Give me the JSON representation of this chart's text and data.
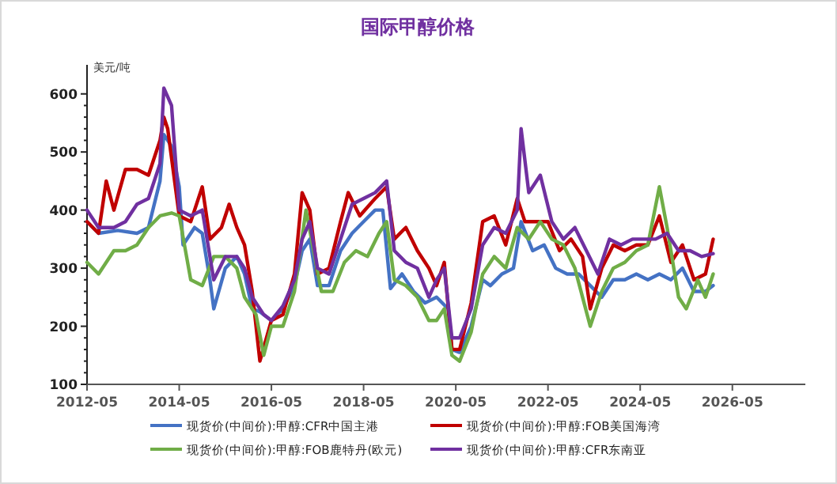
{
  "chart_data": {
    "type": "line",
    "title": "国际甲醇价格",
    "ylabel": "美元/吨",
    "xlim": [
      "2012-05",
      "2027-12"
    ],
    "xticks": [
      "2012-05",
      "2014-05",
      "2016-05",
      "2018-05",
      "2020-05",
      "2022-05",
      "2024-05",
      "2026-05"
    ],
    "ylim": [
      100,
      650
    ],
    "yticks": [
      100,
      200,
      300,
      400,
      500,
      600
    ],
    "grid": false,
    "legend": "bottom",
    "marker": "none",
    "line_style": "solid",
    "series": [
      {
        "name": "现货价(中间价):甲醇:CFR中国主港",
        "color": "#4472c4",
        "x": [
          "2012-05",
          "2012-08",
          "2013-01",
          "2013-06",
          "2013-09",
          "2013-12",
          "2014-01",
          "2014-03",
          "2014-05",
          "2014-06",
          "2014-09",
          "2014-11",
          "2015-01",
          "2015-02",
          "2015-05",
          "2015-08",
          "2015-10",
          "2015-12",
          "2016-02",
          "2016-05",
          "2016-08",
          "2016-11",
          "2017-01",
          "2017-03",
          "2017-05",
          "2017-08",
          "2017-11",
          "2018-02",
          "2018-05",
          "2018-08",
          "2018-10",
          "2018-12",
          "2019-03",
          "2019-06",
          "2019-09",
          "2019-12",
          "2020-03",
          "2020-04",
          "2020-06",
          "2020-09",
          "2020-12",
          "2021-02",
          "2021-05",
          "2021-08",
          "2021-10",
          "2022-01",
          "2022-04",
          "2022-07",
          "2022-10",
          "2023-01",
          "2023-04",
          "2023-07",
          "2023-10",
          "2024-01",
          "2024-04",
          "2024-07",
          "2024-10",
          "2025-01",
          "2025-04",
          "2025-07",
          "2025-10",
          "2025-12"
        ],
        "values": [
          380,
          360,
          365,
          360,
          370,
          450,
          530,
          510,
          440,
          340,
          370,
          360,
          280,
          230,
          300,
          320,
          290,
          230,
          225,
          210,
          230,
          270,
          330,
          350,
          270,
          270,
          330,
          360,
          380,
          400,
          400,
          265,
          290,
          260,
          240,
          250,
          230,
          160,
          155,
          200,
          280,
          270,
          290,
          300,
          380,
          330,
          340,
          300,
          290,
          290,
          270,
          250,
          280,
          280,
          290,
          280,
          290,
          280,
          300,
          260,
          260,
          270
        ]
      },
      {
        "name": "现货价(中间价):甲醇:FOB美国海湾",
        "color": "#c00000",
        "x": [
          "2012-05",
          "2012-08",
          "2012-10",
          "2012-12",
          "2013-03",
          "2013-06",
          "2013-09",
          "2013-12",
          "2014-01",
          "2014-02",
          "2014-05",
          "2014-08",
          "2014-11",
          "2015-01",
          "2015-04",
          "2015-06",
          "2015-08",
          "2015-10",
          "2015-12",
          "2016-02",
          "2016-05",
          "2016-08",
          "2016-11",
          "2017-01",
          "2017-03",
          "2017-05",
          "2017-08",
          "2017-11",
          "2018-01",
          "2018-04",
          "2018-08",
          "2018-11",
          "2019-01",
          "2019-04",
          "2019-07",
          "2019-10",
          "2019-12",
          "2020-02",
          "2020-04",
          "2020-06",
          "2020-09",
          "2020-12",
          "2021-03",
          "2021-06",
          "2021-09",
          "2021-11",
          "2022-02",
          "2022-05",
          "2022-08",
          "2022-11",
          "2023-02",
          "2023-04",
          "2023-07",
          "2023-10",
          "2024-01",
          "2024-04",
          "2024-07",
          "2024-10",
          "2025-01",
          "2025-04",
          "2025-07",
          "2025-10",
          "2025-12"
        ],
        "values": [
          380,
          360,
          450,
          400,
          470,
          470,
          460,
          520,
          560,
          540,
          390,
          380,
          440,
          350,
          370,
          410,
          370,
          340,
          260,
          140,
          210,
          220,
          290,
          430,
          400,
          290,
          300,
          380,
          430,
          390,
          420,
          440,
          350,
          370,
          330,
          300,
          270,
          310,
          160,
          160,
          240,
          380,
          390,
          340,
          420,
          380,
          380,
          380,
          330,
          350,
          320,
          230,
          300,
          340,
          330,
          340,
          340,
          390,
          310,
          340,
          280,
          290,
          350
        ]
      },
      {
        "name": "现货价(中间价):甲醇:FOB鹿特丹(欧元)",
        "color": "#70ad47",
        "x": [
          "2012-05",
          "2012-08",
          "2012-12",
          "2013-03",
          "2013-06",
          "2013-09",
          "2013-12",
          "2014-03",
          "2014-05",
          "2014-08",
          "2014-11",
          "2015-02",
          "2015-05",
          "2015-08",
          "2015-10",
          "2016-01",
          "2016-03",
          "2016-05",
          "2016-08",
          "2016-11",
          "2017-02",
          "2017-04",
          "2017-06",
          "2017-09",
          "2017-12",
          "2018-03",
          "2018-06",
          "2018-09",
          "2018-11",
          "2019-01",
          "2019-04",
          "2019-07",
          "2019-10",
          "2019-12",
          "2020-02",
          "2020-04",
          "2020-06",
          "2020-09",
          "2020-12",
          "2021-03",
          "2021-06",
          "2021-09",
          "2021-12",
          "2022-03",
          "2022-06",
          "2022-09",
          "2022-12",
          "2023-02",
          "2023-04",
          "2023-07",
          "2023-10",
          "2024-01",
          "2024-04",
          "2024-07",
          "2024-10",
          "2024-12",
          "2025-03",
          "2025-05",
          "2025-08",
          "2025-10",
          "2025-12"
        ],
        "values": [
          310,
          290,
          330,
          330,
          340,
          370,
          390,
          395,
          390,
          280,
          270,
          320,
          320,
          300,
          250,
          220,
          150,
          200,
          200,
          260,
          400,
          330,
          260,
          260,
          310,
          330,
          320,
          360,
          380,
          280,
          270,
          250,
          210,
          210,
          230,
          150,
          140,
          190,
          290,
          320,
          300,
          370,
          350,
          380,
          350,
          340,
          300,
          250,
          200,
          260,
          300,
          310,
          330,
          340,
          440,
          370,
          250,
          230,
          280,
          250,
          290
        ]
      },
      {
        "name": "现货价(中间价):甲醇:CFR东南亚",
        "color": "#7030a0",
        "x": [
          "2012-05",
          "2012-08",
          "2012-12",
          "2013-03",
          "2013-06",
          "2013-09",
          "2013-12",
          "2014-01",
          "2014-03",
          "2014-05",
          "2014-08",
          "2014-11",
          "2015-02",
          "2015-05",
          "2015-08",
          "2015-10",
          "2015-12",
          "2016-03",
          "2016-05",
          "2016-08",
          "2016-11",
          "2017-01",
          "2017-03",
          "2017-05",
          "2017-08",
          "2017-11",
          "2018-02",
          "2018-05",
          "2018-08",
          "2018-11",
          "2019-01",
          "2019-04",
          "2019-07",
          "2019-10",
          "2019-12",
          "2020-02",
          "2020-04",
          "2020-06",
          "2020-09",
          "2020-12",
          "2021-03",
          "2021-06",
          "2021-09",
          "2021-10",
          "2021-12",
          "2022-03",
          "2022-06",
          "2022-09",
          "2022-12",
          "2023-03",
          "2023-06",
          "2023-09",
          "2023-12",
          "2024-03",
          "2024-06",
          "2024-09",
          "2024-12",
          "2025-03",
          "2025-06",
          "2025-09",
          "2025-12"
        ],
        "values": [
          400,
          370,
          370,
          380,
          410,
          420,
          480,
          610,
          580,
          400,
          390,
          400,
          280,
          320,
          320,
          300,
          250,
          220,
          210,
          235,
          280,
          350,
          380,
          300,
          290,
          350,
          410,
          420,
          430,
          450,
          330,
          310,
          300,
          250,
          280,
          300,
          180,
          180,
          230,
          340,
          370,
          360,
          400,
          540,
          430,
          460,
          380,
          350,
          370,
          330,
          290,
          350,
          340,
          350,
          350,
          350,
          360,
          330,
          330,
          320,
          325
        ]
      }
    ]
  }
}
